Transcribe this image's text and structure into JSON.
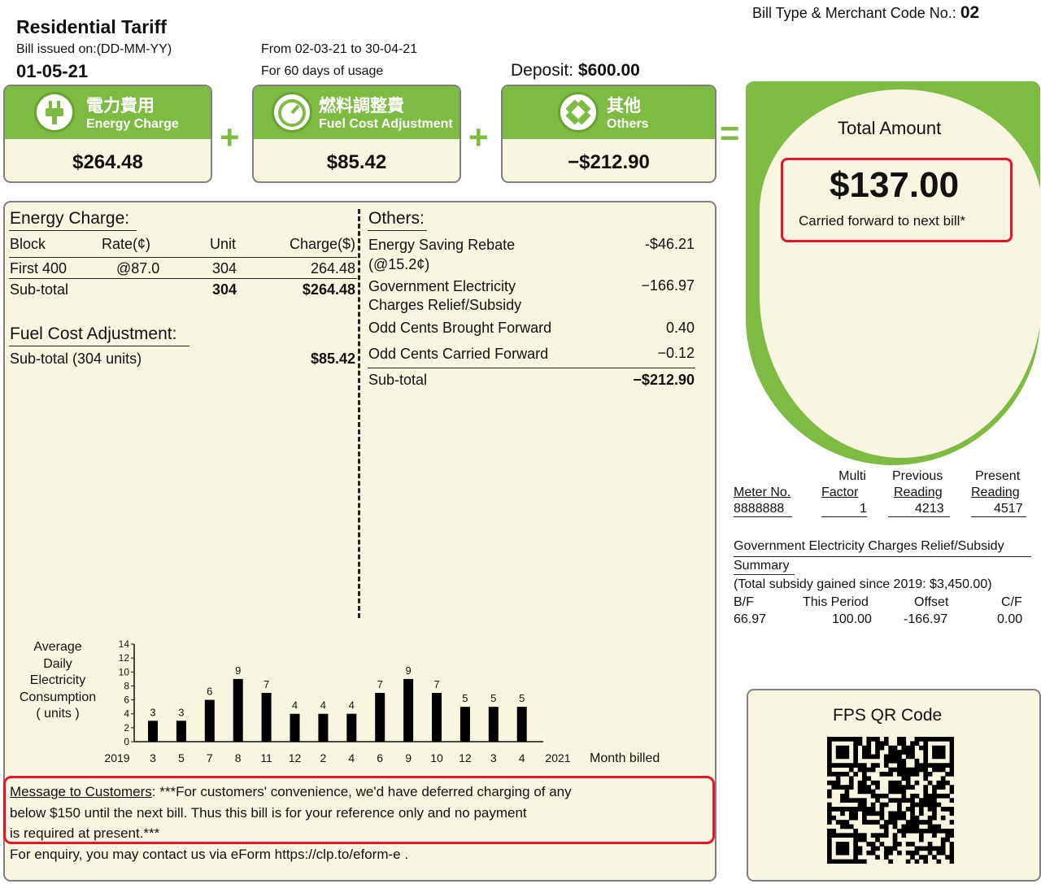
{
  "header": {
    "bill_type_label": "Bill Type & Merchant Code No.:",
    "bill_type_value": "02",
    "tariff_title": "Residential Tariff",
    "issued_label": "Bill issued on:(DD-MM-YY)",
    "issued_date": "01-05-21",
    "period_from": "From 02-03-21 to 30-04-21",
    "period_days": "For 60 days of usage",
    "deposit_label": "Deposit:",
    "deposit_value": "$600.00"
  },
  "summary_boxes": [
    {
      "zh": "電力費用",
      "en": "Energy Charge",
      "amount": "$264.48",
      "icon": "plug-icon"
    },
    {
      "zh": "燃料調整費",
      "en": "Fuel Cost Adjustment",
      "amount": "$85.42",
      "icon": "gauge-icon"
    },
    {
      "zh": "其他",
      "en": "Others",
      "amount": "−$212.90",
      "icon": "others-icon"
    }
  ],
  "operators": {
    "plus": "+",
    "equals": "="
  },
  "total": {
    "label": "Total Amount",
    "amount": "$137.00",
    "note": "Carried forward to next bill*"
  },
  "energy_charge": {
    "title": "Energy Charge:",
    "headers": [
      "Block",
      "Rate(¢)",
      "Unit",
      "Charge($)"
    ],
    "row": [
      "First 400",
      "@87.0",
      "304",
      "264.48"
    ],
    "subtotal": [
      "Sub-total",
      "304",
      "$264.48"
    ]
  },
  "fuel_cost": {
    "title": "Fuel Cost Adjustment:",
    "subtotal_label": "Sub-total (304 units)",
    "subtotal_value": "$85.42"
  },
  "others": {
    "title": "Others:",
    "items": [
      {
        "label1": "Energy Saving Rebate",
        "label2": "(@15.2¢)",
        "value": "-$46.21"
      },
      {
        "label1": "Government Electricity",
        "label2": "Charges Relief/Subsidy",
        "value": "−166.97"
      },
      {
        "label1": "Odd Cents Brought Forward",
        "value": "0.40"
      },
      {
        "label1": "Odd Cents Carried Forward",
        "value": "−0.12"
      }
    ],
    "subtotal_label": "Sub-total",
    "subtotal_value": "−$212.90"
  },
  "meter": {
    "headers": [
      [
        "",
        "Meter No."
      ],
      [
        "Multi",
        "Factor"
      ],
      [
        "Previous",
        "Reading"
      ],
      [
        "Present",
        "Reading"
      ]
    ],
    "values": [
      "8888888",
      "1",
      "4213",
      "4517"
    ]
  },
  "subsidy": {
    "title": "Government Electricity Charges Relief/Subsidy",
    "subtitle": "Summary",
    "total_gained": "(Total subsidy gained since 2019: $3,450.00)",
    "headers": [
      "B/F",
      "This Period",
      "Offset",
      "C/F"
    ],
    "values": [
      "66.97",
      "100.00",
      "-166.97",
      "0.00"
    ]
  },
  "chart_data": {
    "type": "bar",
    "ylabel": "Average Daily Electricity Consumption ( units )",
    "ylabel_lines": [
      "Average",
      "Daily",
      "Electricity",
      "Consumption",
      "( units )"
    ],
    "xlabel": "Month billed",
    "year_start": "2019",
    "year_end": "2021",
    "categories": [
      "3",
      "5",
      "7",
      "8",
      "11",
      "12",
      "2",
      "4",
      "6",
      "9",
      "10",
      "12",
      "3",
      "4"
    ],
    "values": [
      3,
      3,
      6,
      9,
      7,
      4,
      4,
      4,
      7,
      9,
      7,
      5,
      5,
      5
    ],
    "yticks": [
      "0",
      "2",
      "4",
      "6",
      "8",
      "10",
      "12",
      "14"
    ],
    "ylim": [
      0,
      14
    ]
  },
  "message": {
    "label": "Message to Customers",
    "line1": ": ***For customers' convenience, we'd have deferred charging of any",
    "line2": "below $150 until the next bill. Thus this bill is for your reference only and no payment",
    "line3": "is required at present.***",
    "enquiry": "For enquiry, you may contact us via eForm https://clp.to/eform-e ."
  },
  "qr": {
    "title": "FPS QR Code",
    "icon": "qr-code-icon"
  },
  "colors": {
    "brand_green": "#7dbb42",
    "panel_bg": "#f8f6e1",
    "highlight_red": "#e8142a"
  }
}
